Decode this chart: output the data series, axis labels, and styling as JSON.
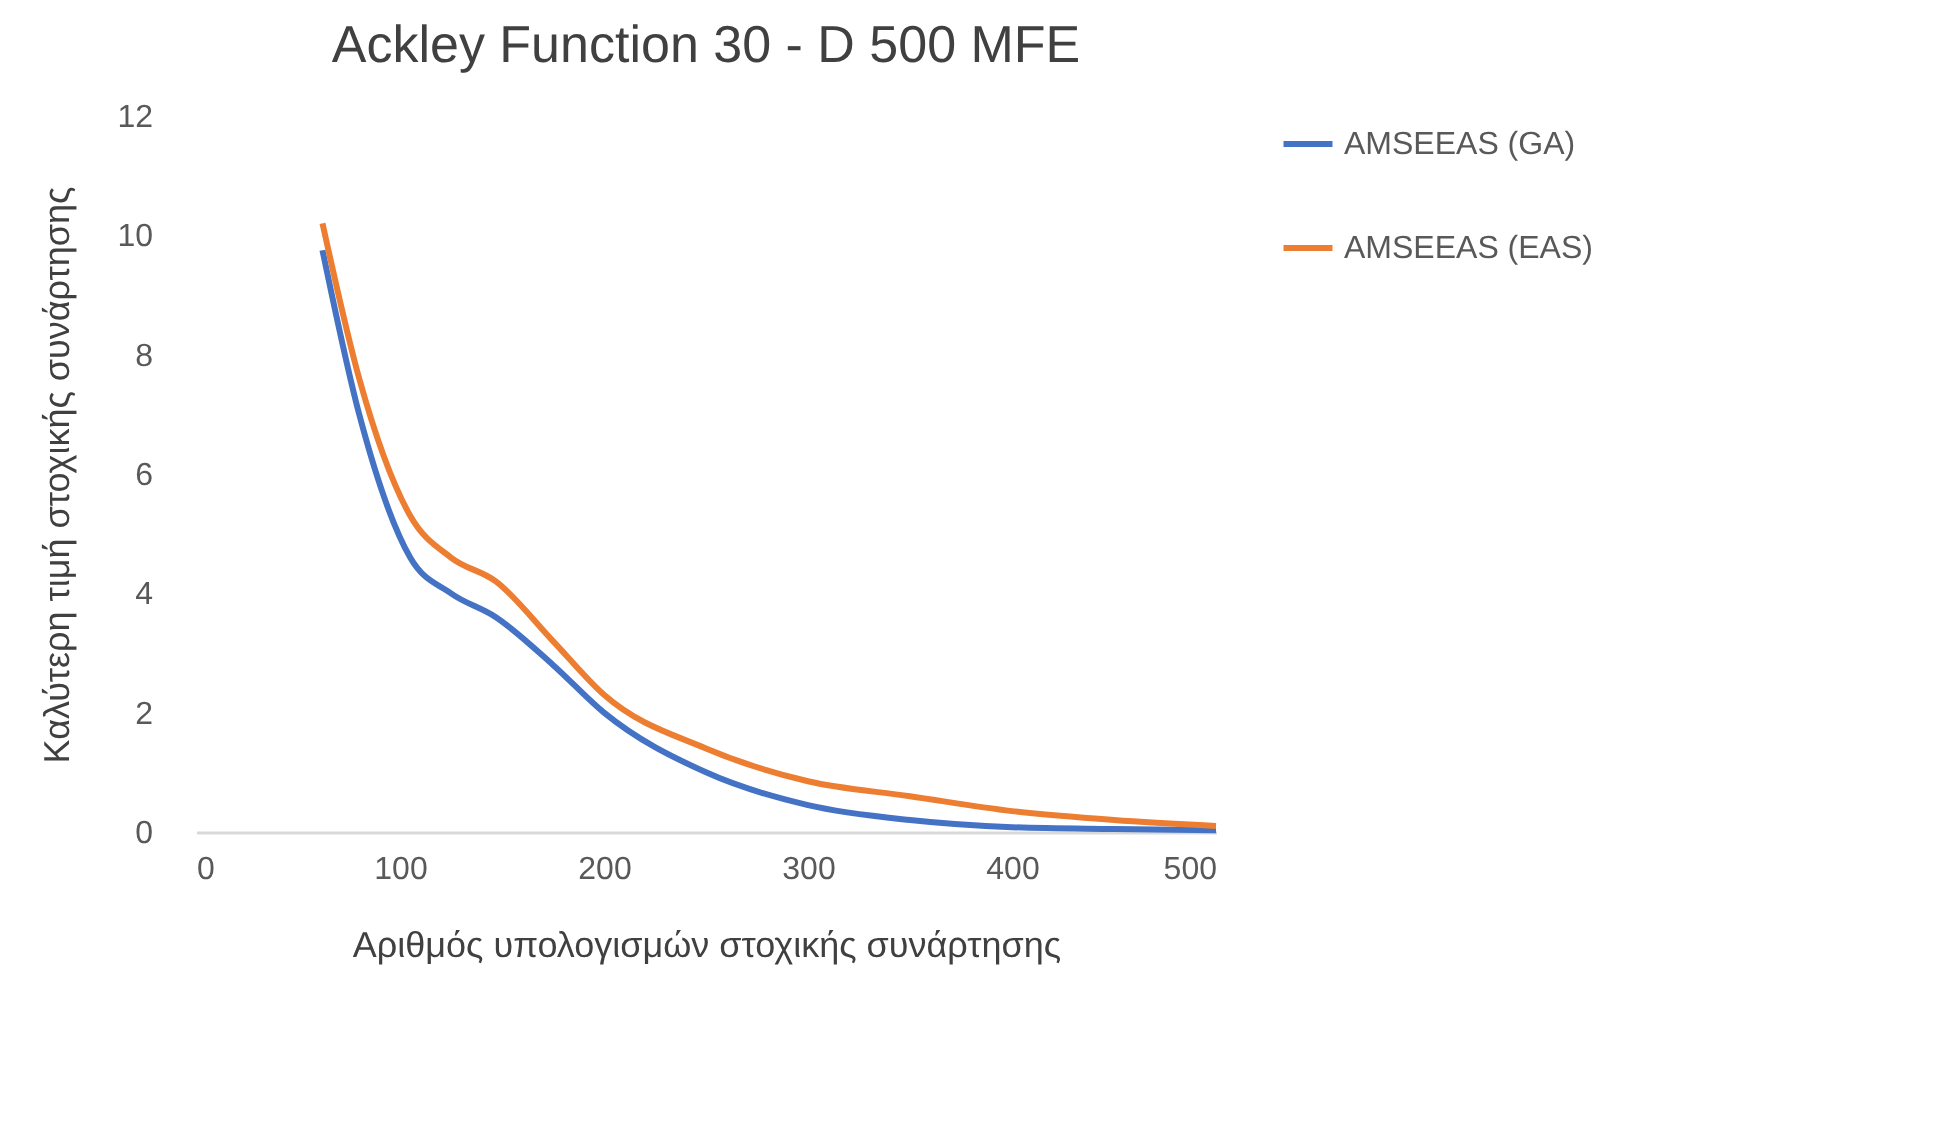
{
  "chart_data": {
    "type": "line",
    "title": "Ackley Function 30 - D 500 MFE",
    "xlabel": "Αριθμός υπολογισμών στοχικής συνάρτησης",
    "ylabel": "Καλύτερη τιμή στοχικής συνάρτησης",
    "x": [
      62,
      80,
      105,
      125,
      147,
      175,
      200,
      250,
      300,
      350,
      400,
      450,
      500
    ],
    "series": [
      {
        "name": "AMSEEAS (GA)",
        "color": "#4472c4",
        "values": [
          9.75,
          7.0,
          4.6,
          4.0,
          3.6,
          2.8,
          2.0,
          1.0,
          0.45,
          0.2,
          0.08,
          0.05,
          0.03
        ]
      },
      {
        "name": "AMSEEAS (EAS)",
        "color": "#ed7d31",
        "values": [
          10.2,
          7.6,
          5.3,
          4.6,
          4.2,
          3.2,
          2.3,
          1.4,
          0.85,
          0.6,
          0.35,
          0.2,
          0.1
        ]
      }
    ],
    "xlim": [
      0,
      500
    ],
    "xticks": [
      0,
      100,
      200,
      300,
      400,
      500
    ],
    "ylim": [
      0,
      12
    ],
    "yticks": [
      0,
      2,
      4,
      6,
      8,
      10,
      12
    ],
    "grid": false,
    "legend": "right",
    "marker": "none",
    "line_style": "solid"
  }
}
